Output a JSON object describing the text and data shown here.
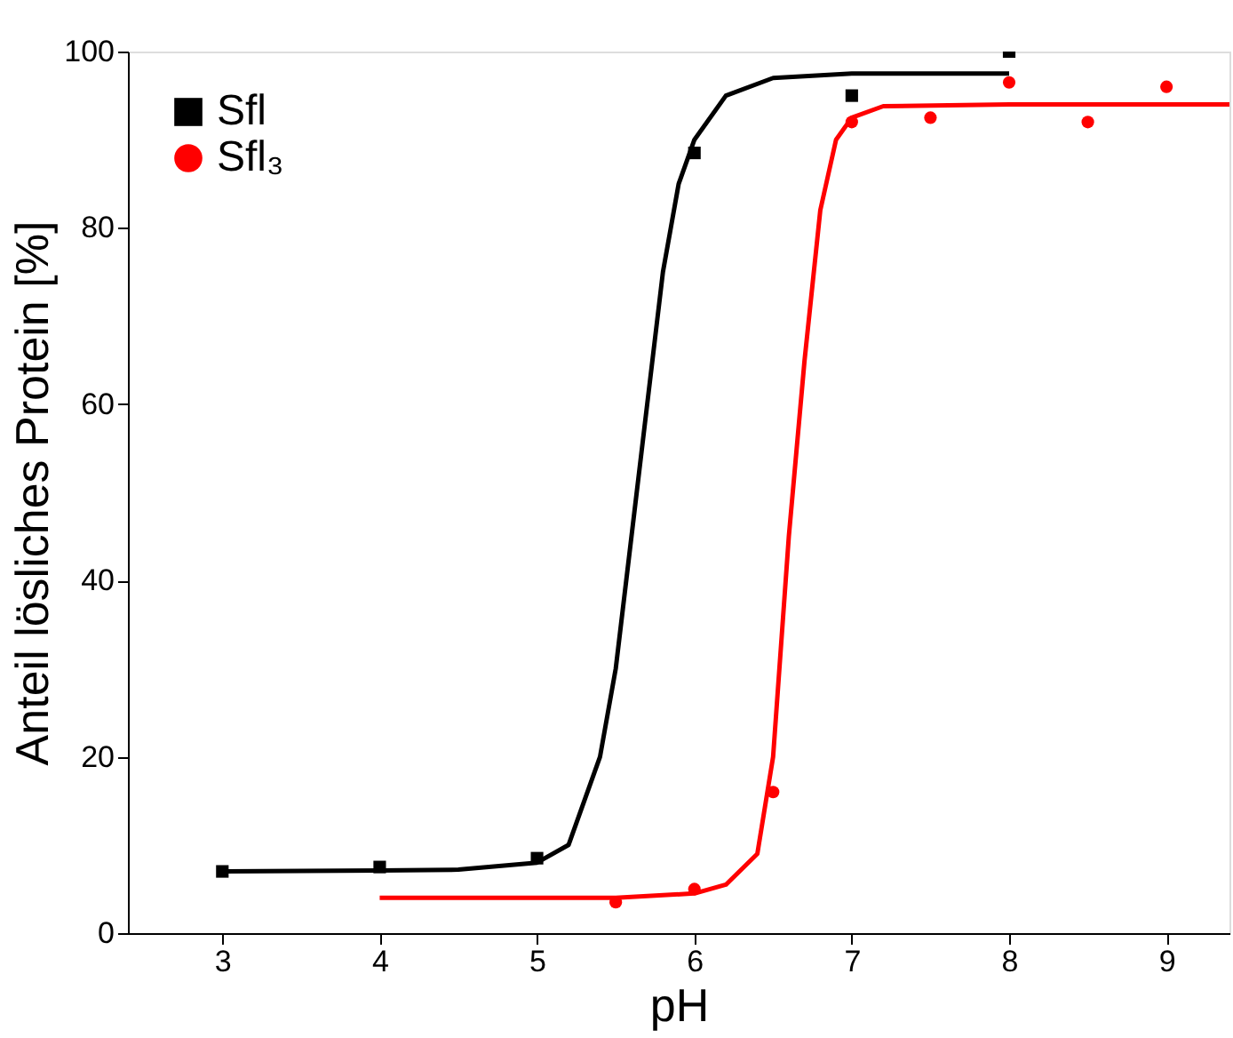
{
  "chart_data": {
    "type": "scatter",
    "xlabel": "pH",
    "ylabel": "Anteil lösliches Protein [%]",
    "xlim": [
      2.4,
      9.4
    ],
    "xticks": [
      3,
      4,
      5,
      6,
      7,
      8,
      9
    ],
    "ylim": [
      0,
      100
    ],
    "yticks": [
      0,
      20,
      40,
      60,
      80,
      100
    ],
    "grid": false,
    "legend": "top left",
    "series": [
      {
        "name": "Sfl",
        "color": "#000000",
        "marker": "square",
        "x": [
          3,
          4,
          5,
          6,
          7,
          8
        ],
        "values": [
          7,
          7.5,
          8.5,
          88.5,
          95,
          100
        ]
      },
      {
        "name": "Sfl₃",
        "color": "#ff0000",
        "marker": "circle",
        "x": [
          5.5,
          6,
          6.5,
          7,
          7.5,
          8,
          8.5,
          9
        ],
        "values": [
          3.5,
          5,
          16,
          92,
          92.5,
          96.5,
          92,
          96
        ]
      },
      {
        "type": "line",
        "color": "#000000",
        "marker": "none",
        "x": [
          3,
          4,
          4.5,
          5,
          5.2,
          5.4,
          5.5,
          5.6,
          5.7,
          5.8,
          5.9,
          6,
          6.2,
          6.5,
          7,
          8
        ],
        "values": [
          7,
          7.1,
          7.2,
          8,
          10,
          20,
          30,
          45,
          60,
          75,
          85,
          90,
          95,
          97,
          97.5,
          97.5
        ]
      },
      {
        "type": "line",
        "color": "#ff0000",
        "marker": "none",
        "x": [
          4,
          5,
          5.5,
          6,
          6.2,
          6.4,
          6.5,
          6.6,
          6.7,
          6.8,
          6.9,
          7,
          7.2,
          8,
          9.4
        ],
        "values": [
          4,
          4,
          4,
          4.5,
          5.5,
          9,
          20,
          45,
          65,
          82,
          90,
          92.5,
          93.8,
          94,
          94
        ]
      }
    ]
  }
}
